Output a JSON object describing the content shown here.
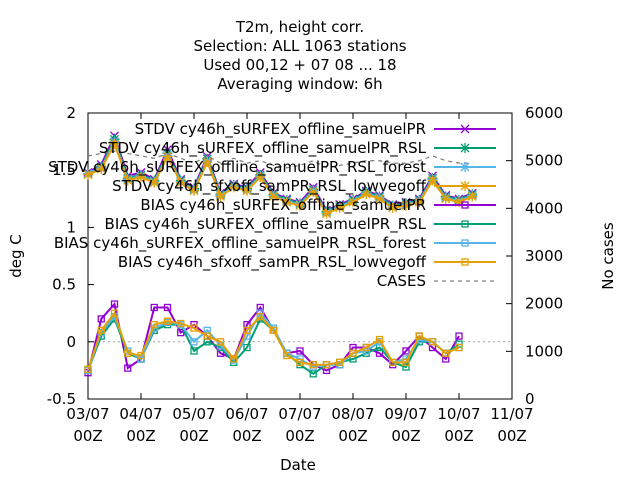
{
  "chart_data": {
    "type": "line",
    "title_lines": [
      "T2m, height corr.",
      "Selection: ALL   1063 stations",
      "Used  00,12  + 07 08 ... 18",
      "Averaging window:  6h"
    ],
    "xlabel": "Date",
    "ylabel": "deg C",
    "y2label": "No cases",
    "ylim": [
      -0.5,
      2
    ],
    "y2lim": [
      0,
      6000
    ],
    "y_ticks": [
      "-0.5",
      "0",
      "0.5",
      "1",
      "1.5",
      "2"
    ],
    "y2_ticks": [
      "0",
      "1000",
      "2000",
      "3000",
      "4000",
      "5000",
      "6000"
    ],
    "x_ticks": [
      {
        "d": "03/07",
        "h": "00Z"
      },
      {
        "d": "04/07",
        "h": "00Z"
      },
      {
        "d": "05/07",
        "h": "00Z"
      },
      {
        "d": "06/07",
        "h": "00Z"
      },
      {
        "d": "07/07",
        "h": "00Z"
      },
      {
        "d": "08/07",
        "h": "00Z"
      },
      {
        "d": "09/07",
        "h": "00Z"
      },
      {
        "d": "10/07",
        "h": "00Z"
      },
      {
        "d": "11/07",
        "h": "00Z"
      }
    ],
    "x": [
      0,
      0.25,
      0.5,
      0.75,
      1,
      1.25,
      1.5,
      1.75,
      2,
      2.25,
      2.5,
      2.75,
      3,
      3.25,
      3.5,
      3.75,
      4,
      4.25,
      4.5,
      4.75,
      5,
      5.25,
      5.5,
      5.75,
      6,
      6.25,
      6.5,
      6.75,
      7,
      7.25,
      7.5
    ],
    "grid": true,
    "legend_position": "top-right",
    "series": [
      {
        "name": "STDV cy46h_sURFEX_offline_samuelPR",
        "color": "#9400d3",
        "marker": "x",
        "group": "stdv",
        "values": [
          1.48,
          1.55,
          1.8,
          1.45,
          1.48,
          1.42,
          1.68,
          1.42,
          1.35,
          1.62,
          1.3,
          1.38,
          1.35,
          1.48,
          1.3,
          1.25,
          1.22,
          1.35,
          1.15,
          1.2,
          1.25,
          1.32,
          1.28,
          1.2,
          1.22,
          1.25,
          1.45,
          1.28,
          1.25,
          1.3,
          null
        ]
      },
      {
        "name": "STDV cy46h_sURFEX_offline_samuelPR_RSL",
        "color": "#009e73",
        "marker": "star",
        "group": "stdv",
        "values": [
          1.47,
          1.53,
          1.77,
          1.43,
          1.46,
          1.41,
          1.65,
          1.41,
          1.34,
          1.6,
          1.29,
          1.37,
          1.34,
          1.46,
          1.29,
          1.24,
          1.21,
          1.33,
          1.14,
          1.19,
          1.24,
          1.31,
          1.27,
          1.19,
          1.21,
          1.24,
          1.43,
          1.27,
          1.24,
          1.29,
          null
        ]
      },
      {
        "name": "STDV cy46h_sURFEX_offline_samuelPR_RSL_forest",
        "color": "#56b4e9",
        "marker": "star",
        "group": "stdv",
        "values": [
          1.47,
          1.52,
          1.75,
          1.42,
          1.45,
          1.4,
          1.63,
          1.4,
          1.33,
          1.58,
          1.28,
          1.36,
          1.33,
          1.45,
          1.28,
          1.23,
          1.2,
          1.32,
          1.13,
          1.18,
          1.23,
          1.3,
          1.26,
          1.18,
          1.2,
          1.23,
          1.42,
          1.26,
          1.23,
          1.28,
          null
        ]
      },
      {
        "name": "STDV cy46h_sfxoff_samPR_RSL_lowvegoff",
        "color": "#e69f00",
        "marker": "star",
        "group": "stdv",
        "values": [
          1.46,
          1.51,
          1.73,
          1.41,
          1.44,
          1.39,
          1.62,
          1.39,
          1.32,
          1.57,
          1.27,
          1.35,
          1.32,
          1.44,
          1.27,
          1.22,
          1.19,
          1.31,
          1.12,
          1.17,
          1.22,
          1.29,
          1.25,
          1.17,
          1.19,
          1.22,
          1.41,
          1.25,
          1.22,
          1.27,
          null
        ]
      },
      {
        "name": "BIAS cy46h_sURFEX_offline_samuelPR",
        "color": "#9400d3",
        "marker": "square",
        "group": "bias",
        "values": [
          -0.27,
          0.2,
          0.33,
          -0.23,
          -0.15,
          0.3,
          0.3,
          0.08,
          0.15,
          0.05,
          -0.1,
          -0.15,
          0.15,
          0.3,
          0.1,
          -0.1,
          -0.08,
          -0.2,
          -0.25,
          -0.2,
          -0.05,
          -0.05,
          -0.1,
          -0.2,
          -0.08,
          0.05,
          -0.05,
          -0.15,
          0.05,
          null,
          null
        ]
      },
      {
        "name": "BIAS cy46h_sURFEX_offline_samuelPR_RSL",
        "color": "#009e73",
        "marker": "square",
        "group": "bias",
        "values": [
          -0.25,
          0.05,
          0.2,
          -0.1,
          -0.15,
          0.1,
          0.15,
          0.15,
          -0.08,
          0.0,
          -0.05,
          -0.18,
          -0.05,
          0.2,
          0.1,
          -0.1,
          -0.2,
          -0.28,
          -0.2,
          -0.18,
          -0.15,
          -0.1,
          -0.05,
          -0.18,
          -0.22,
          0.0,
          0.0,
          -0.1,
          -0.02,
          null,
          null
        ]
      },
      {
        "name": "BIAS cy46h_sURFEX_offline_samuelPR_RSL_forest",
        "color": "#56b4e9",
        "marker": "square",
        "group": "bias",
        "values": [
          -0.25,
          0.08,
          0.22,
          -0.08,
          -0.15,
          0.12,
          0.17,
          0.15,
          0.0,
          0.1,
          -0.03,
          -0.16,
          0.05,
          0.25,
          0.12,
          -0.1,
          -0.15,
          -0.22,
          -0.2,
          -0.2,
          -0.1,
          -0.08,
          0.0,
          -0.18,
          -0.15,
          0.02,
          0.0,
          -0.1,
          -0.05,
          null,
          null
        ]
      },
      {
        "name": "BIAS cy46h_sfxoff_samPR_RSL_lowvegoff",
        "color": "#e69f00",
        "marker": "square",
        "group": "bias",
        "values": [
          -0.24,
          0.1,
          0.25,
          -0.1,
          -0.12,
          0.15,
          0.18,
          0.16,
          0.12,
          0.05,
          0.0,
          -0.15,
          0.1,
          0.22,
          0.1,
          -0.12,
          -0.18,
          -0.2,
          -0.2,
          -0.18,
          -0.1,
          -0.05,
          0.02,
          -0.18,
          -0.18,
          0.05,
          0.0,
          -0.1,
          -0.05,
          null,
          null
        ]
      },
      {
        "name": "CASES",
        "color": "#808080",
        "marker": "none",
        "group": "cases",
        "axis": "y2",
        "values": [
          5100,
          5150,
          5200,
          5150,
          5100,
          5050,
          5150,
          5050,
          4950,
          5100,
          4950,
          5050,
          4950,
          5000,
          4900,
          4850,
          4900,
          5000,
          4850,
          4900,
          4950,
          5000,
          5000,
          4950,
          4950,
          5000,
          5100,
          5000,
          4950,
          4950,
          null
        ]
      }
    ]
  }
}
